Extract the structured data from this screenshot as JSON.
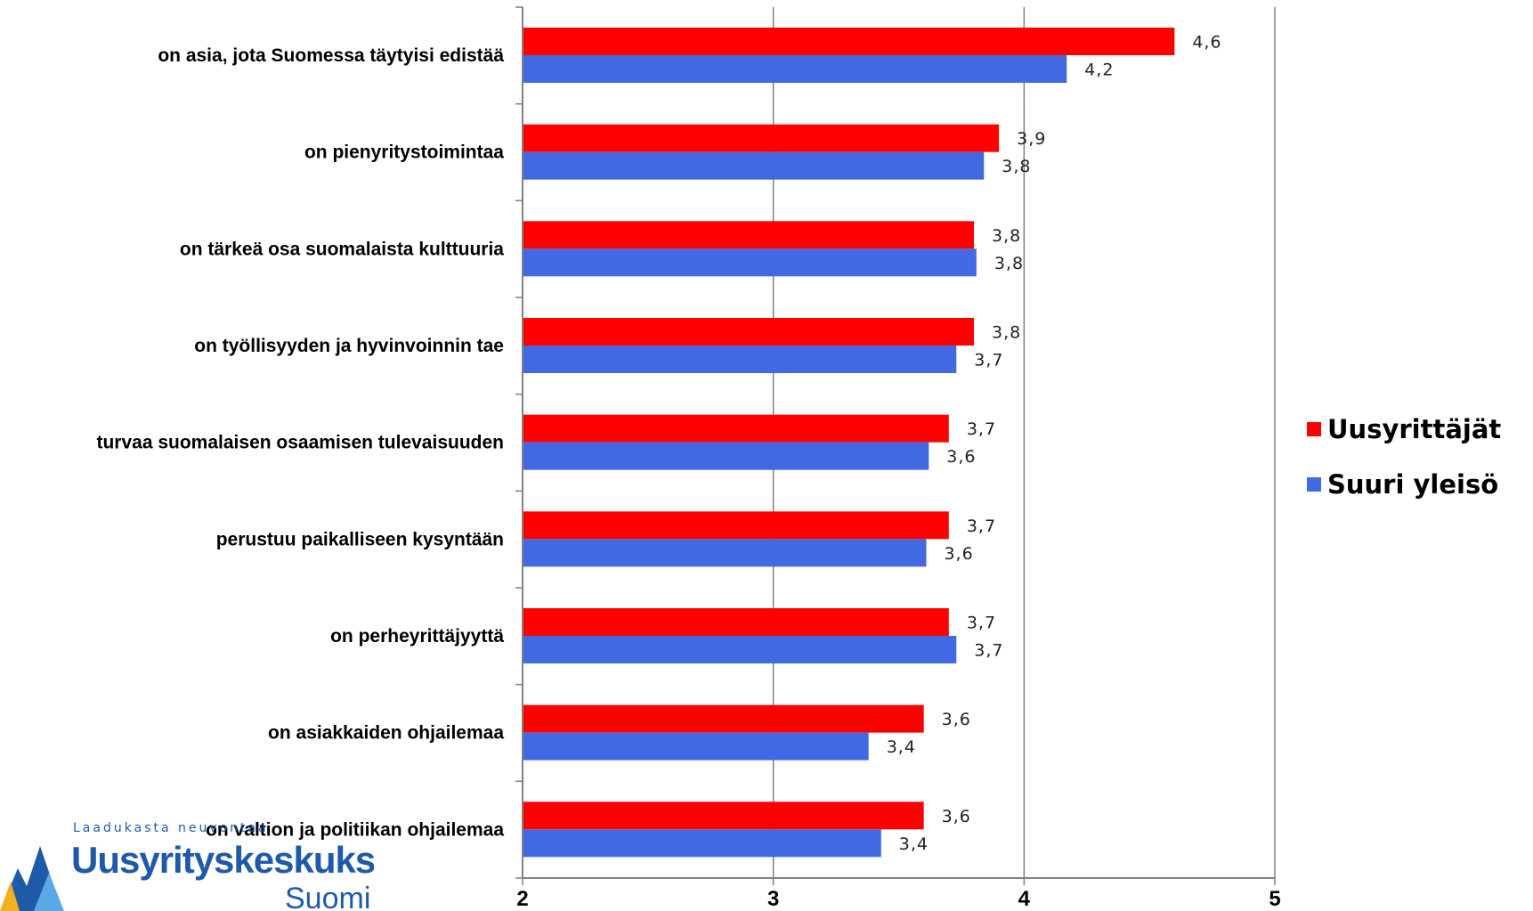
{
  "chart_data": {
    "type": "bar",
    "orientation": "horizontal",
    "categories": [
      "on asia, jota Suomessa täytyisi edistää",
      "on pienyritystoimintaa",
      "on tärkeä osa suomalaista kulttuuria",
      "on työllisyyden ja hyvinvoinnin tae",
      "turvaa suomalaisen osaamisen tulevaisuuden",
      "perustuu paikalliseen kysyntään",
      "on perheyrittäjyyttä",
      "on asiakkaiden ohjailemaa",
      "on valtion ja politiikan ohjailemaa"
    ],
    "series": [
      {
        "name": "Uusyrittäjät",
        "color": "#ff0000",
        "values": [
          4.6,
          3.9,
          3.8,
          3.8,
          3.7,
          3.7,
          3.7,
          3.6,
          3.6
        ],
        "labels": [
          "4,6",
          "3,9",
          "3,8",
          "3,8",
          "3,7",
          "3,7",
          "3,7",
          "3,6",
          "3,6"
        ]
      },
      {
        "name": "Suuri yleisö",
        "color": "#4169e1",
        "values": [
          4.17,
          3.84,
          3.81,
          3.73,
          3.62,
          3.61,
          3.73,
          3.38,
          3.43
        ],
        "labels": [
          "4,2",
          "3,8",
          "3,8",
          "3,7",
          "3,6",
          "3,6",
          "3,7",
          "3,4",
          "3,4"
        ]
      }
    ],
    "xlim": [
      2,
      5
    ],
    "xticks": [
      2,
      3,
      4,
      5
    ],
    "xtick_labels": [
      "2",
      "3",
      "4",
      "5"
    ],
    "grid": true,
    "legend_position": "right"
  },
  "logo": {
    "tagline": "Laadukasta neuvontaa",
    "name": "Uusyrityskeskukset",
    "sub": "Suomi"
  }
}
